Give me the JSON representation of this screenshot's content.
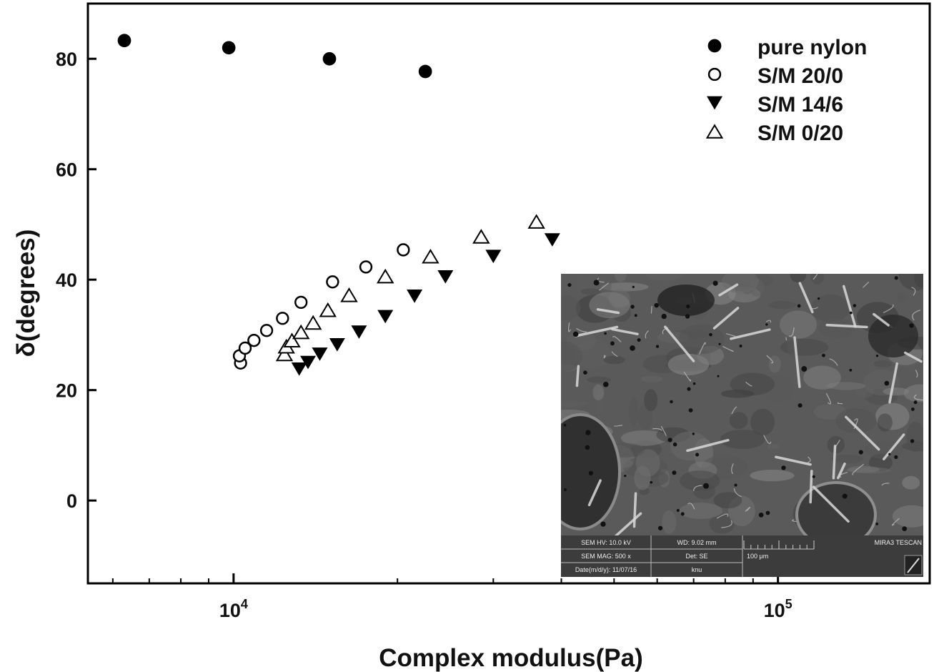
{
  "chart_data": {
    "type": "scatter",
    "xlabel": "Complex modulus(Pa)",
    "ylabel": "δ(degrees)",
    "xscale": "log",
    "xlim": [
      5400,
      190000
    ],
    "ylim": [
      -15,
      90
    ],
    "x_ticks": [
      {
        "base": "10",
        "exp": "4",
        "value": 10000
      },
      {
        "base": "10",
        "exp": "5",
        "value": 100000
      }
    ],
    "y_ticks": [
      0,
      20,
      40,
      60,
      80
    ],
    "legend_position": "top-right",
    "series": [
      {
        "name": "pure nylon",
        "marker": "filled-circle",
        "x": [
          6300,
          9800,
          15000,
          22500
        ],
        "y": [
          83.3,
          82.0,
          80.0,
          77.7
        ]
      },
      {
        "name": "S/M 20/0",
        "marker": "open-circle",
        "x": [
          10300,
          10250,
          10500,
          10900,
          11500,
          12300,
          13300,
          15200,
          17500,
          20500
        ],
        "y": [
          24.9,
          26.2,
          27.6,
          29.0,
          30.8,
          33.0,
          35.9,
          39.6,
          42.3,
          45.4
        ]
      },
      {
        "name": "S/M 14/6",
        "marker": "filled-triangle-down",
        "x": [
          13200,
          13700,
          14400,
          15500,
          17000,
          19000,
          21500,
          24500,
          30000,
          38500
        ],
        "y": [
          23.8,
          25.0,
          26.5,
          28.2,
          30.5,
          33.3,
          37.0,
          40.5,
          44.2,
          47.2
        ]
      },
      {
        "name": "S/M 0/20",
        "marker": "open-triangle-up",
        "x": [
          12400,
          12500,
          12800,
          13300,
          14000,
          14900,
          16300,
          19000,
          23000,
          28500,
          36000
        ],
        "y": [
          26.5,
          27.9,
          29.0,
          30.5,
          32.2,
          34.5,
          37.2,
          40.6,
          44.2,
          47.8,
          50.5
        ]
      }
    ]
  },
  "sem_inset": {
    "row1": [
      "SEM HV: 10.0 kV",
      "WD: 9.02 mm",
      "MIRA3 TESCAN"
    ],
    "row2": [
      "SEM MAG: 500 x",
      "Det: SE",
      "100 μm"
    ],
    "row3": [
      "Date(m/d/y): 11/07/16",
      "knu"
    ]
  }
}
